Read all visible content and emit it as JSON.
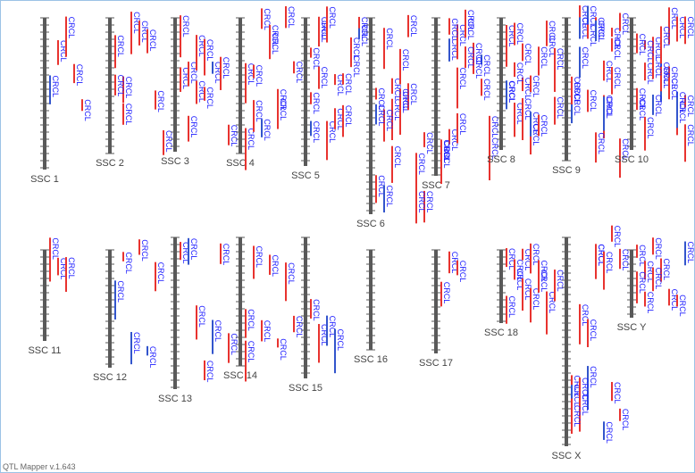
{
  "chromosomes": [
    {
      "name": "SSC 1",
      "qtls": [
        "CRCL",
        "CRCL",
        "CRCL",
        "CRCL",
        "CRCL"
      ]
    },
    {
      "name": "SSC 2",
      "qtls": [
        "CRCL",
        "CRCL",
        "CRCL",
        "CRCL",
        "CRCL",
        "CRCL",
        "CRCL",
        "CRCL",
        "CRCL"
      ]
    },
    {
      "name": "SSC 3",
      "qtls": [
        "CRCL",
        "CRCL",
        "CRCL",
        "CRCL",
        "CRCL",
        "CRCL",
        "CRCL",
        "CRCL",
        "CRCL",
        "CRCL",
        "CRCL"
      ]
    },
    {
      "name": "SSC 4",
      "qtls": [
        "CRCL",
        "CRCL",
        "CRCL",
        "CRCL",
        "CRCL",
        "CRCL",
        "CRCL",
        "CRCL",
        "CRCL",
        "CRCL",
        "CRCL",
        "CRCL"
      ]
    },
    {
      "name": "SSC 5",
      "qtls": [
        "CRCL",
        "CRCL",
        "CRCL",
        "CRCL",
        "CRCL",
        "CRCL",
        "CRCL",
        "CRCL",
        "CRCL",
        "CRCL",
        "CRCL",
        "CRCL",
        "CRCL",
        "CRCL",
        "CRCL",
        "CRCL"
      ]
    },
    {
      "name": "SSC 6",
      "qtls": [
        "CRCL",
        "CRCL",
        "CRCL",
        "CRCL",
        "CRCL",
        "CRCL",
        "CRCL",
        "CRCL",
        "CRCL",
        "CRCL",
        "CRCL",
        "CRCL",
        "CRCL",
        "CRCL",
        "CRCL",
        "CRCL",
        "CRCL",
        "CRCL"
      ]
    },
    {
      "name": "SSC 7",
      "qtls": [
        "CRCL",
        "CRCL",
        "CRCL",
        "CRCL",
        "CRCL",
        "CRCL",
        "CRCL",
        "CRCL",
        "CRCL",
        "CRCL",
        "CRCL",
        "CRCL",
        "CRCL",
        "CRCL",
        "CRCL",
        "CRCL",
        "CRCL",
        "CRCL"
      ]
    },
    {
      "name": "SSC 8",
      "qtls": [
        "CRCL",
        "CRCL",
        "CRCL",
        "CRCL",
        "CRCL",
        "CRCL",
        "CRCL",
        "CRCL",
        "CRCL",
        "CRCL",
        "CRCL",
        "CRCL",
        "CRCL",
        "CRCL",
        "CRCL",
        "CRCL",
        "CRCL",
        "CRCL"
      ]
    },
    {
      "name": "SSC 9",
      "qtls": [
        "CRCL",
        "CRCL",
        "CRCL",
        "CRCL",
        "CRCL",
        "CRCL",
        "CRCL",
        "CRCL",
        "CRCL",
        "CRCL",
        "CRCL",
        "CRCL",
        "CRCL",
        "CRCL",
        "CRCL",
        "CRCL",
        "CRCL",
        "CRCL",
        "CRCL",
        "CRCL"
      ]
    },
    {
      "name": "SSC 10",
      "qtls": [
        "CRCL",
        "CRCL",
        "CRCL",
        "CRCL",
        "CRCL",
        "CRCL",
        "CRCL",
        "CRCL",
        "CRCL",
        "CRCL",
        "CRCL",
        "CRCL",
        "CRCL",
        "CRCL",
        "CRCL",
        "CRCL",
        "CRCL",
        "CRCL",
        "CRCL",
        "CRCL",
        "CRCL"
      ]
    },
    {
      "name": "SSC 11",
      "qtls": [
        "CRCL",
        "CRCL",
        "CRCL"
      ]
    },
    {
      "name": "SSC 12",
      "qtls": [
        "CRCL",
        "CRCL",
        "CRCL",
        "CRCL",
        "CRCL",
        "CRCL"
      ]
    },
    {
      "name": "SSC 13",
      "qtls": [
        "CRCL",
        "CRCL",
        "CRCL",
        "CRCL",
        "CRCL",
        "CRCL",
        "CRCL"
      ]
    },
    {
      "name": "SSC 14",
      "qtls": [
        "CRCL",
        "CRCL",
        "CRCL",
        "CRCL",
        "CRCL",
        "CRCL",
        "CRCL",
        "CRCL"
      ]
    },
    {
      "name": "SSC 15",
      "qtls": [
        "CRCL",
        "CRCL",
        "CRCL",
        "CRCL"
      ]
    },
    {
      "name": "SSC 16",
      "qtls": []
    },
    {
      "name": "SSC 17",
      "qtls": [
        "CRCL",
        "CRCL",
        "CRCL"
      ]
    },
    {
      "name": "SSC 18",
      "qtls": [
        "CRCL",
        "CRCL",
        "CRCL",
        "CRCL",
        "CRCL",
        "CRCL",
        "CRCL",
        "CRCL",
        "CRCL",
        "CRCL",
        "CRCL",
        "CRCL"
      ]
    },
    {
      "name": "SSC X",
      "qtls": [
        "CRCL",
        "CRCL",
        "CRCL",
        "CRCL",
        "CRCL",
        "CRCL",
        "CRCL",
        "CRCL",
        "CRCL",
        "CRCL",
        "CRCL",
        "CRCL",
        "CRCL",
        "CRCL",
        "CRCL",
        "CRCL"
      ]
    },
    {
      "name": "SSC Y",
      "qtls": [
        "CRCL",
        "CRCL",
        "CRCL",
        "CRCL",
        "CRCL",
        "CRCL",
        "CRCL",
        "CRCL",
        "CRCL",
        "CRCL"
      ]
    }
  ],
  "footer": "QTL Mapper v.1.643"
}
